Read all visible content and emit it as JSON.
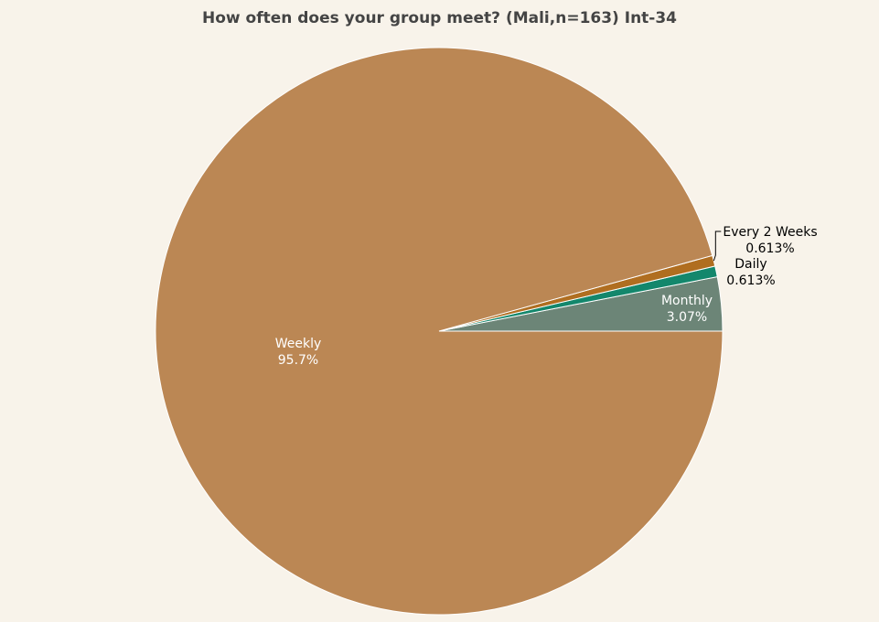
{
  "chart_data": {
    "type": "pie",
    "title": "How often does your group meet? (Mali,n=163) Int-34",
    "slices": [
      {
        "label": "Monthly",
        "value": 3.07,
        "value_label": "3.07%",
        "color": "#6c8577",
        "text_color": "#ffffff",
        "label_pos": "inside"
      },
      {
        "label": "Daily",
        "value": 0.613,
        "value_label": "0.613%",
        "color": "#13876c",
        "text_color": "#000000",
        "label_pos": "outside"
      },
      {
        "label": "Every 2 Weeks",
        "value": 0.613,
        "value_label": "0.613%",
        "color": "#b06e20",
        "text_color": "#000000",
        "label_pos": "outside"
      },
      {
        "label": "Weekly",
        "value": 95.7,
        "value_label": "95.7%",
        "color": "#bb8754",
        "text_color": "#ffffff",
        "label_pos": "inside"
      }
    ],
    "start": "3 o'clock",
    "direction": "counterclockwise",
    "legend": "none"
  }
}
